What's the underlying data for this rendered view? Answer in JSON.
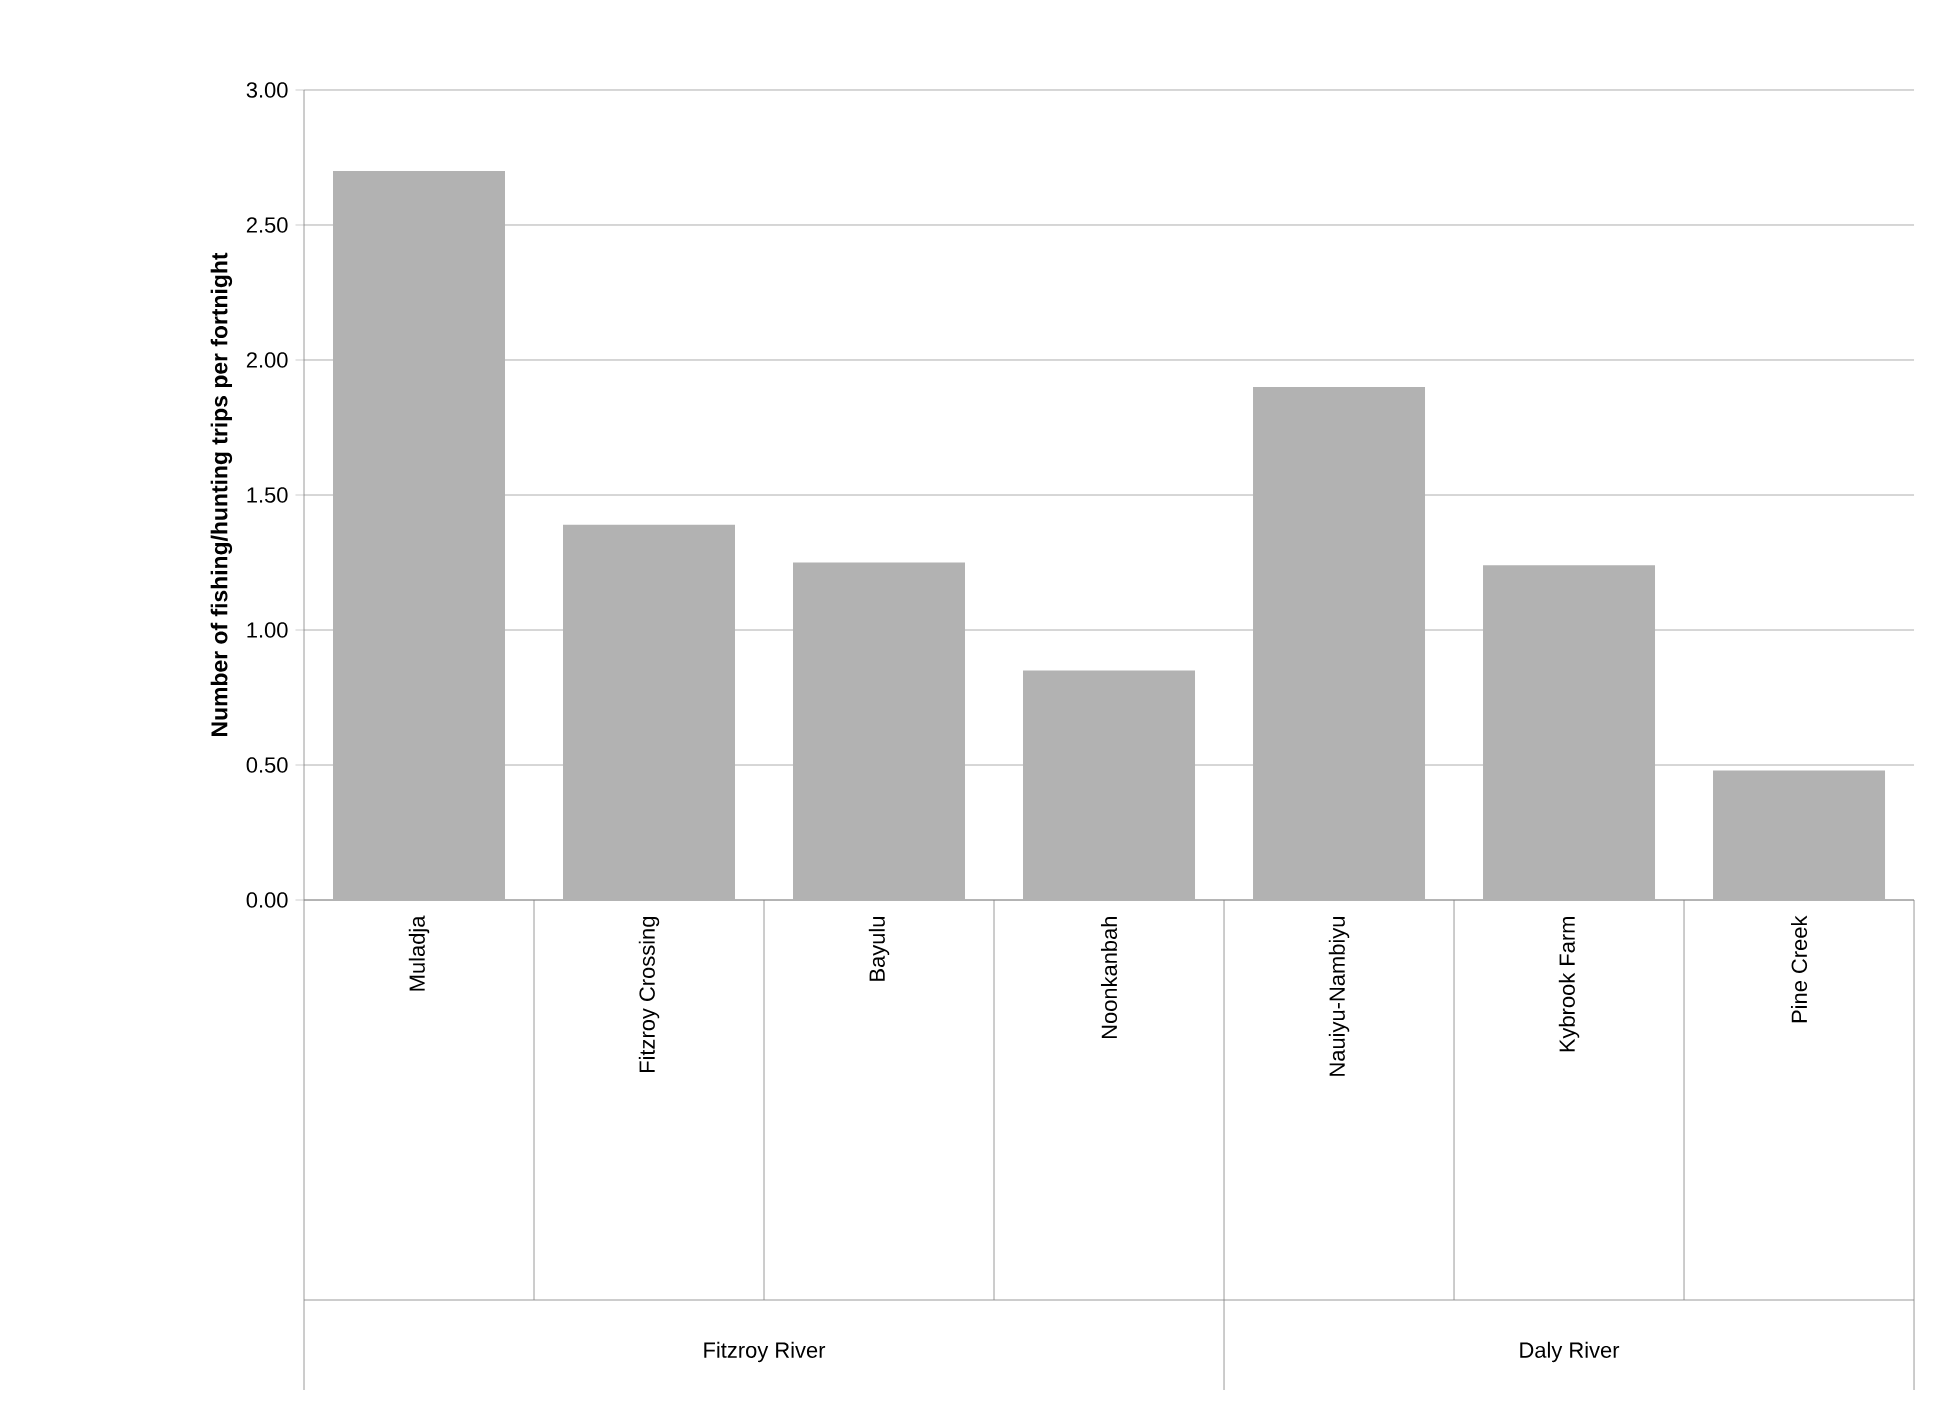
{
  "chart_data": {
    "type": "bar",
    "ylabel": "Number of fishing/hunting trips per fortnight",
    "categories": [
      "Muladja",
      "Fitzroy Crossing",
      "Bayulu",
      "Noonkanbah",
      "Nauiyu-Nambiyu",
      "Kybrook Farm",
      "Pine Creek"
    ],
    "values": [
      2.7,
      1.39,
      1.25,
      0.85,
      1.9,
      1.24,
      0.48
    ],
    "color": "#b2b2b2",
    "ylim": [
      0,
      3
    ],
    "yticks": [
      {
        "value": 0,
        "label": "0.00"
      },
      {
        "value": 0.5,
        "label": "0.50"
      },
      {
        "value": 1,
        "label": "1.00"
      },
      {
        "value": 1.5,
        "label": "1.50"
      },
      {
        "value": 2,
        "label": "2.00"
      },
      {
        "value": 2.5,
        "label": "2.50"
      },
      {
        "value": 3,
        "label": "3.00"
      }
    ],
    "grid": "y",
    "annotations": [
      "Fitzroy River",
      "Daly River"
    ]
  }
}
